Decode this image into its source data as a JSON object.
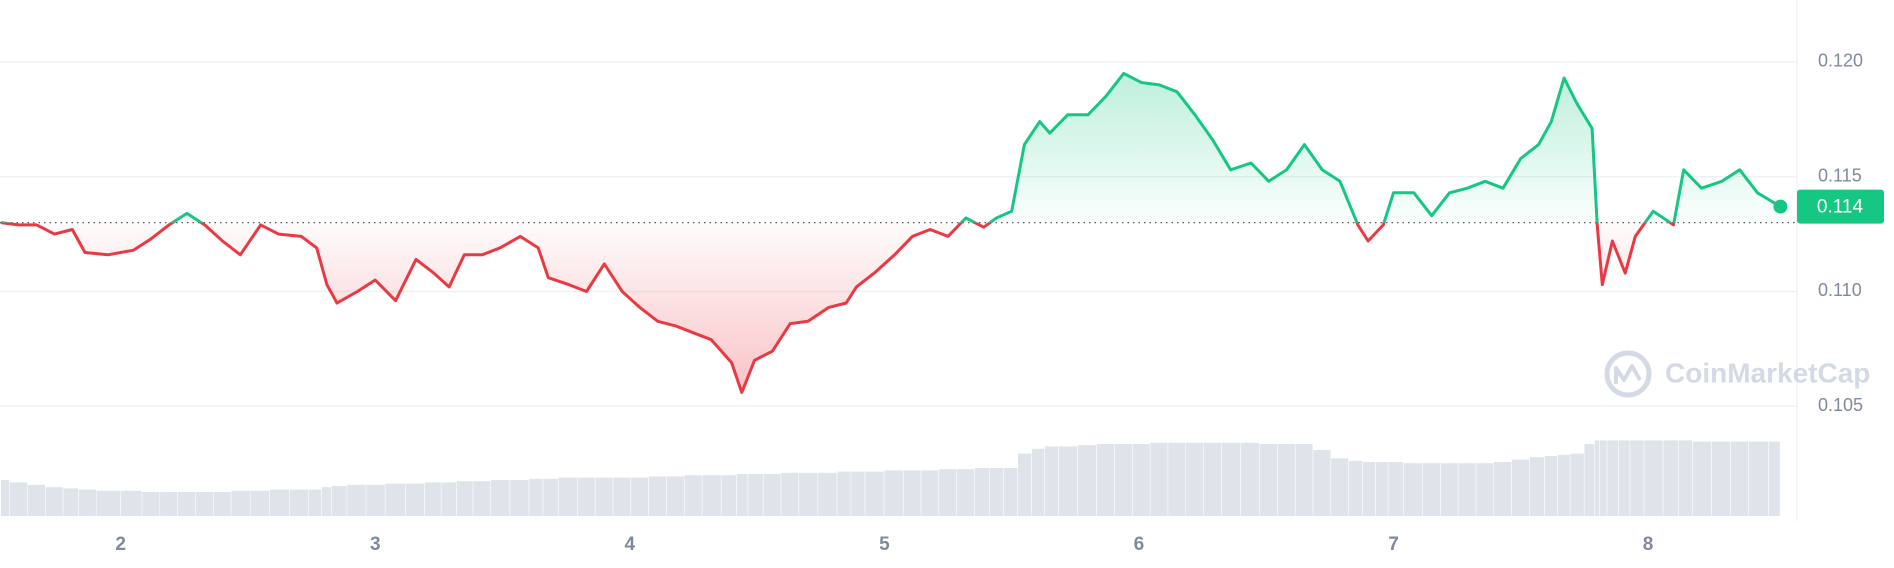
{
  "chart_data": {
    "type": "line",
    "x": [
      1.53,
      1.6,
      1.67,
      1.74,
      1.81,
      1.86,
      1.95,
      2.05,
      2.12,
      2.19,
      2.26,
      2.33,
      2.4,
      2.47,
      2.55,
      2.62,
      2.71,
      2.77,
      2.81,
      2.85,
      2.93,
      3.0,
      3.08,
      3.16,
      3.23,
      3.29,
      3.35,
      3.42,
      3.49,
      3.57,
      3.64,
      3.68,
      3.76,
      3.83,
      3.9,
      3.97,
      4.04,
      4.11,
      4.18,
      4.25,
      4.32,
      4.4,
      4.44,
      4.49,
      4.56,
      4.63,
      4.7,
      4.78,
      4.85,
      4.89,
      4.96,
      5.04,
      5.11,
      5.18,
      5.25,
      5.32,
      5.39,
      5.44,
      5.5,
      5.55,
      5.61,
      5.65,
      5.72,
      5.8,
      5.87,
      5.94,
      6.01,
      6.08,
      6.15,
      6.22,
      6.29,
      6.36,
      6.44,
      6.51,
      6.58,
      6.65,
      6.72,
      6.79,
      6.86,
      6.9,
      6.96,
      7.0,
      7.08,
      7.15,
      7.22,
      7.29,
      7.36,
      7.43,
      7.5,
      7.57,
      7.62,
      7.67,
      7.72,
      7.78,
      7.8,
      7.82,
      7.86,
      7.91,
      7.95,
      8.02,
      8.1,
      8.14,
      8.21,
      8.29,
      8.36,
      8.43,
      8.52
    ],
    "values": [
      0.113,
      0.1129,
      0.1129,
      0.1125,
      0.1127,
      0.1117,
      0.1116,
      0.1118,
      0.1123,
      0.1129,
      0.1134,
      0.1129,
      0.1122,
      0.1116,
      0.1129,
      0.1125,
      0.1124,
      0.1119,
      0.1103,
      0.1095,
      0.11,
      0.1105,
      0.1096,
      0.1114,
      0.1108,
      0.1102,
      0.1116,
      0.1116,
      0.1119,
      0.1124,
      0.1119,
      0.1106,
      0.1103,
      0.11,
      0.1112,
      0.11,
      0.1093,
      0.1087,
      0.1085,
      0.1082,
      0.1079,
      0.1069,
      0.1056,
      0.107,
      0.1074,
      0.1086,
      0.1087,
      0.1093,
      0.1095,
      0.1102,
      0.1108,
      0.1116,
      0.1124,
      0.1127,
      0.1124,
      0.1132,
      0.1128,
      0.1132,
      0.1135,
      0.1164,
      0.1174,
      0.1169,
      0.1177,
      0.1177,
      0.1185,
      0.1195,
      0.1191,
      0.119,
      0.1187,
      0.1177,
      0.1166,
      0.1153,
      0.1156,
      0.1148,
      0.1153,
      0.1164,
      0.1153,
      0.1148,
      0.1129,
      0.1122,
      0.1129,
      0.1143,
      0.1143,
      0.1133,
      0.1143,
      0.1145,
      0.1148,
      0.1145,
      0.1158,
      0.1164,
      0.1174,
      0.1193,
      0.1182,
      0.1171,
      0.1129,
      0.1103,
      0.1122,
      0.1108,
      0.1124,
      0.1135,
      0.1129,
      0.1153,
      0.1145,
      0.1148,
      0.1153,
      0.1143,
      0.1137
    ],
    "volume": [
      30,
      28,
      26,
      24,
      23,
      22,
      21,
      21,
      20,
      20,
      20,
      20,
      20,
      21,
      21,
      22,
      22,
      22,
      24,
      25,
      26,
      26,
      27,
      27,
      28,
      28,
      29,
      29,
      30,
      30,
      31,
      31,
      32,
      32,
      32,
      32,
      32,
      33,
      33,
      34,
      34,
      34,
      35,
      35,
      35,
      36,
      36,
      36,
      37,
      37,
      37,
      38,
      38,
      38,
      39,
      39,
      40,
      40,
      40,
      52,
      56,
      58,
      58,
      59,
      60,
      60,
      60,
      61,
      61,
      61,
      61,
      61,
      61,
      60,
      60,
      60,
      55,
      48,
      46,
      45,
      45,
      45,
      44,
      44,
      44,
      44,
      44,
      45,
      47,
      49,
      50,
      51,
      52,
      60,
      63,
      63,
      63,
      63,
      63,
      63,
      63,
      63,
      62,
      62,
      62,
      62,
      62
    ],
    "vlim": [
      0,
      100
    ],
    "reference_line": 0.113,
    "up_color": "#16c784",
    "down_color": "#ea3943",
    "volume_color": "#dfe3ea",
    "xlim": [
      1.526,
      8.585
    ],
    "xticks": [
      2,
      3,
      4,
      5,
      6,
      7,
      8
    ],
    "ylim": [
      0.1,
      0.1227
    ],
    "yticks": [
      0.105,
      {
        "value": 0.11,
        "label": "0.110"
      },
      0.115,
      {
        "value": 0.12,
        "label": "0.120"
      }
    ],
    "grid": true,
    "price_label": "0.114",
    "watermark": "CoinMarketCap"
  }
}
